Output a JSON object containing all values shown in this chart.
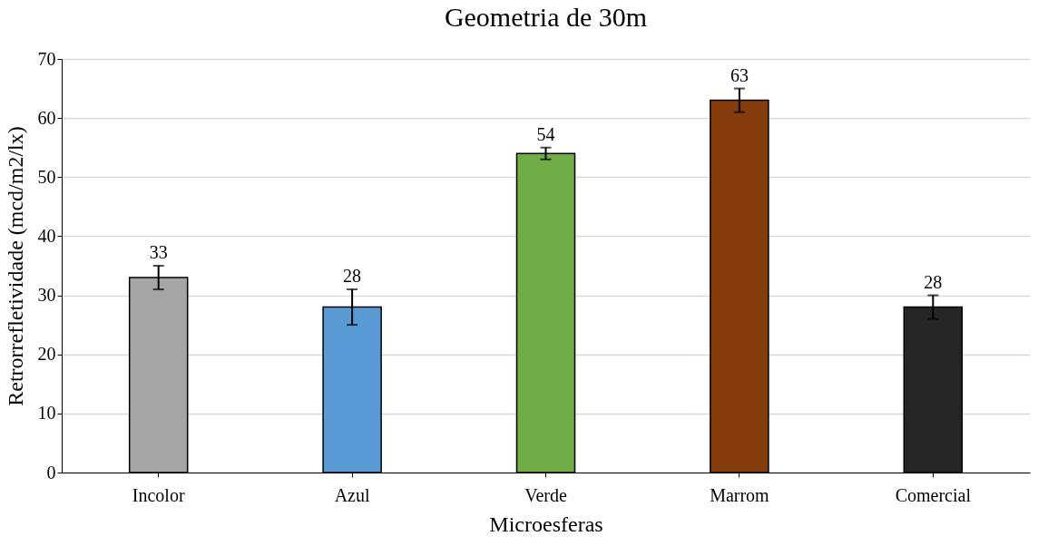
{
  "chart_data": {
    "type": "bar",
    "title": "Geometria de 30m",
    "xlabel": "Microesferas",
    "ylabel": "Retrorrefletividade (mcd/m2/lx)",
    "categories": [
      "Incolor",
      "Azul",
      "Verde",
      "Marrom",
      "Comercial"
    ],
    "values": [
      33,
      28,
      54,
      63,
      28
    ],
    "colors": [
      "#a5a5a5",
      "#5b9bd5",
      "#70ad47",
      "#843c0c",
      "#262626"
    ],
    "errors": [
      2,
      3,
      1,
      2,
      2
    ],
    "data_labels": true,
    "ylim": [
      0,
      70
    ],
    "yticks": [
      0,
      10,
      20,
      30,
      40,
      50,
      60,
      70
    ],
    "grid": "y",
    "legend": false
  }
}
